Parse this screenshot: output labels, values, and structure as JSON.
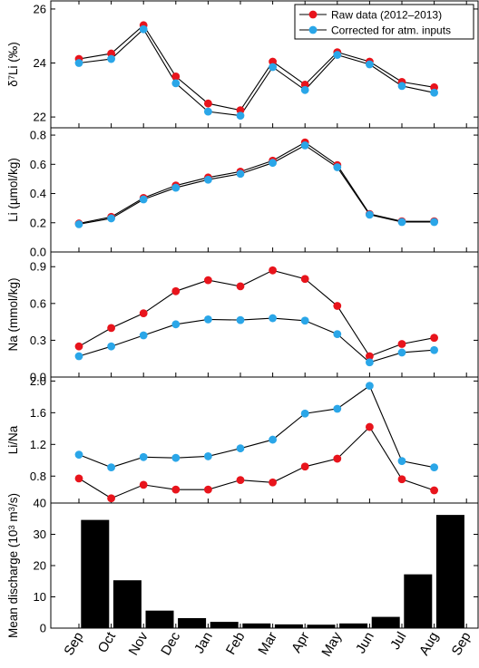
{
  "figure": {
    "months": [
      "Sep",
      "Oct",
      "Nov",
      "Dec",
      "Jan",
      "Feb",
      "Mar",
      "Apr",
      "May",
      "Jun",
      "Jul",
      "Aug",
      "Sep"
    ],
    "legend": {
      "raw_label": "Raw data (2012–2013)",
      "corrected_label": "Corrected for atm. inputs"
    },
    "colors": {
      "raw": "#e8141c",
      "corrected": "#2aa6e8",
      "bar": "#000000"
    }
  },
  "chart_data": [
    {
      "type": "line",
      "ylabel": "δ7Li (‰)",
      "ylabel_base": "δ",
      "ylabel_sup": "7",
      "ylabel_rest": "Li (‰)",
      "ylim": [
        21.6,
        26.3
      ],
      "yticks": [
        22,
        24,
        26
      ],
      "x": [
        1,
        2,
        3,
        4,
        5,
        6,
        7,
        8,
        9,
        10,
        11,
        12
      ],
      "series": [
        {
          "name": "Raw data (2012–2013)",
          "values": [
            24.15,
            24.35,
            25.4,
            23.5,
            22.5,
            22.25,
            24.05,
            23.2,
            24.4,
            24.05,
            23.3,
            23.1
          ]
        },
        {
          "name": "Corrected for atm. inputs",
          "values": [
            24.0,
            24.15,
            25.25,
            23.25,
            22.2,
            22.05,
            23.85,
            23.0,
            24.3,
            23.95,
            23.15,
            22.9
          ]
        }
      ]
    },
    {
      "type": "line",
      "ylabel": "Li (µmol/kg)",
      "ylim": [
        0.0,
        0.85
      ],
      "yticks": [
        0.0,
        0.2,
        0.4,
        0.6,
        0.8
      ],
      "x": [
        1,
        2,
        3,
        4,
        5,
        6,
        7,
        8,
        9,
        10,
        11,
        12
      ],
      "series": [
        {
          "name": "Raw data (2012–2013)",
          "values": [
            0.195,
            0.24,
            0.37,
            0.455,
            0.51,
            0.55,
            0.625,
            0.75,
            0.595,
            0.26,
            0.21,
            0.21
          ]
        },
        {
          "name": "Corrected for atm. inputs",
          "values": [
            0.19,
            0.23,
            0.36,
            0.44,
            0.495,
            0.535,
            0.61,
            0.73,
            0.58,
            0.255,
            0.205,
            0.205
          ]
        }
      ]
    },
    {
      "type": "line",
      "ylabel": "Na (mmol/kg)",
      "ylim": [
        0.0,
        1.02
      ],
      "yticks": [
        0.0,
        0.3,
        0.6,
        0.9
      ],
      "x": [
        1,
        2,
        3,
        4,
        5,
        6,
        7,
        8,
        9,
        10,
        11,
        12
      ],
      "series": [
        {
          "name": "Raw data (2012–2013)",
          "values": [
            0.25,
            0.4,
            0.52,
            0.7,
            0.79,
            0.74,
            0.87,
            0.8,
            0.58,
            0.17,
            0.27,
            0.32
          ]
        },
        {
          "name": "Corrected for atm. inputs",
          "values": [
            0.17,
            0.25,
            0.34,
            0.43,
            0.47,
            0.465,
            0.48,
            0.46,
            0.35,
            0.12,
            0.2,
            0.22
          ]
        }
      ]
    },
    {
      "type": "line",
      "ylabel": "Li/Na",
      "ylim": [
        0.46,
        2.05
      ],
      "yticks": [
        0.8,
        1.2,
        1.6,
        2.0
      ],
      "x": [
        1,
        2,
        3,
        4,
        5,
        6,
        7,
        8,
        9,
        10,
        11,
        12
      ],
      "series": [
        {
          "name": "Raw data (2012–2013)",
          "values": [
            0.77,
            0.52,
            0.69,
            0.63,
            0.63,
            0.75,
            0.72,
            0.92,
            1.02,
            1.42,
            0.76,
            0.62
          ]
        },
        {
          "name": "Corrected for atm. inputs",
          "values": [
            1.07,
            0.91,
            1.04,
            1.03,
            1.05,
            1.15,
            1.26,
            1.59,
            1.65,
            1.94,
            0.99,
            0.91
          ]
        }
      ]
    },
    {
      "type": "bar",
      "ylabel": "Mean discharge (103 m3/s)",
      "ylabel_parts": [
        "Mean discharge (10",
        "3",
        " m",
        "3",
        "/s)"
      ],
      "ylim": [
        0,
        40
      ],
      "yticks": [
        0,
        10,
        20,
        30,
        40
      ],
      "categories": [
        "Sep–Oct",
        "Oct–Nov",
        "Nov–Dec",
        "Dec–Jan",
        "Jan–Feb",
        "Feb–Mar",
        "Mar–Apr",
        "Apr–May",
        "May–Jun",
        "Jun–Jul",
        "Jul–Aug",
        "Aug–Sep"
      ],
      "values": [
        34.6,
        15.3,
        5.6,
        3.2,
        2.0,
        1.5,
        1.2,
        1.1,
        1.5,
        3.6,
        17.2,
        36.2
      ]
    }
  ]
}
